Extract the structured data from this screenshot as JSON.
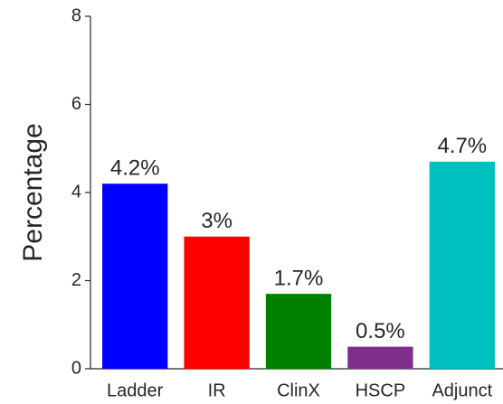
{
  "chart_data": {
    "type": "bar",
    "y_label": "Percentage",
    "categories": [
      "Ladder",
      "IR",
      "ClinX",
      "HSCP",
      "Adjunct"
    ],
    "values": [
      4.2,
      3,
      1.7,
      0.5,
      4.7
    ],
    "value_labels": [
      "4.2%",
      "3%",
      "1.7%",
      "0.5%",
      "4.7%"
    ],
    "colors": [
      "#0000ff",
      "#ff0000",
      "#008000",
      "#7e2f8e",
      "#00bfbf"
    ],
    "ylim": [
      0,
      8
    ],
    "yticks": [
      0,
      2,
      4,
      6,
      8
    ],
    "grid": false
  }
}
